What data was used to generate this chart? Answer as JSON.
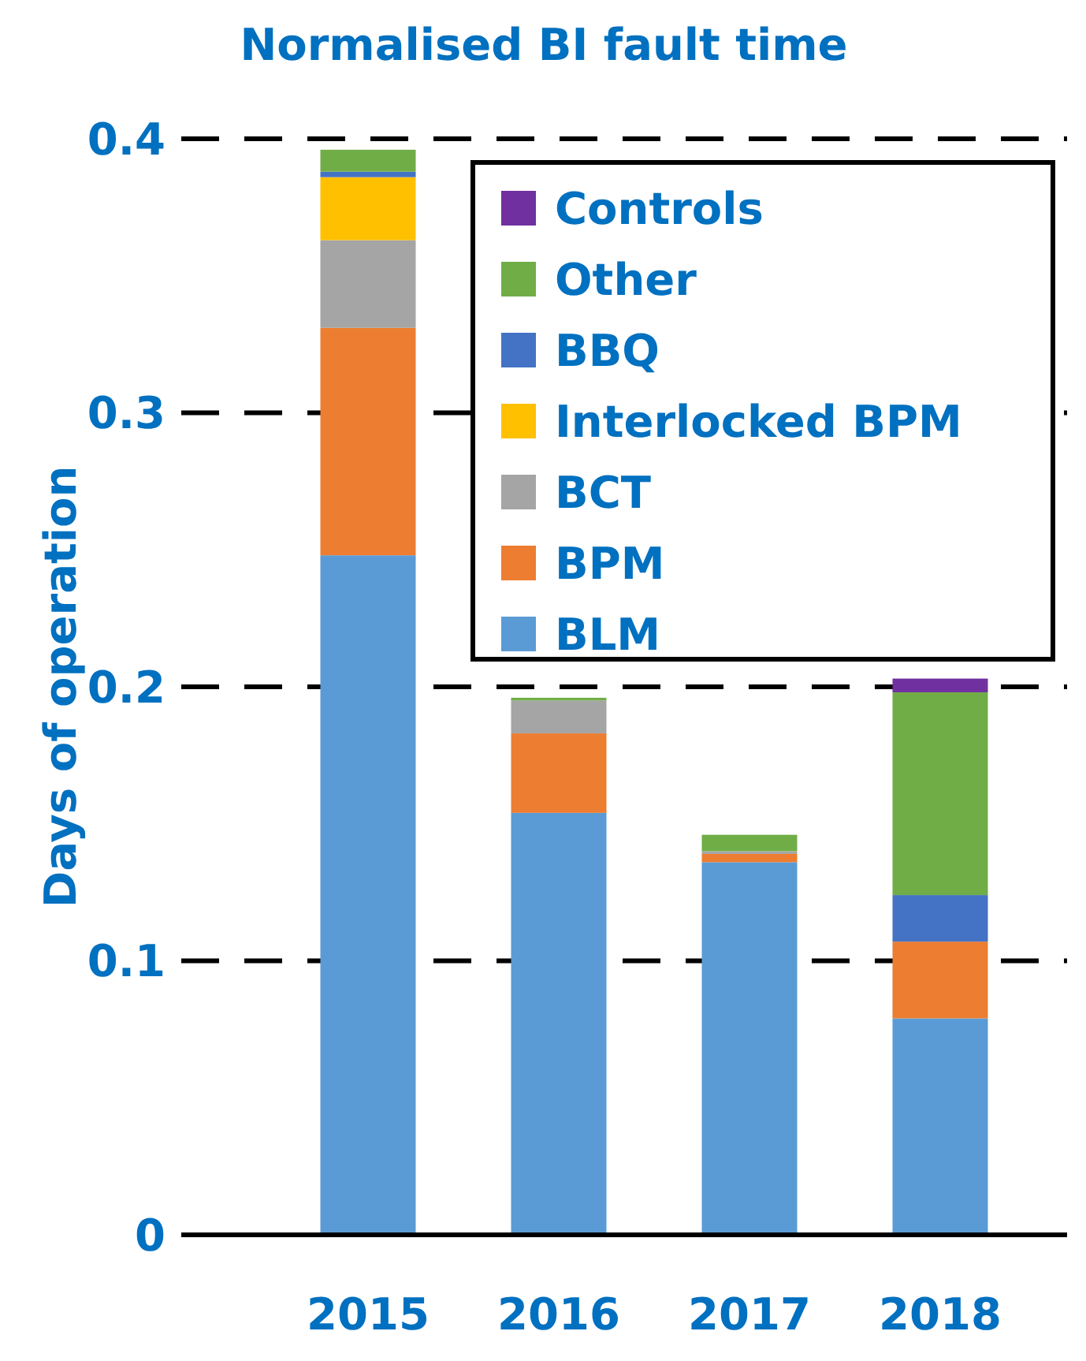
{
  "chart_data": {
    "type": "bar",
    "title": "Normalised BI fault time",
    "ylabel": "Days of operation",
    "categories": [
      "2015",
      "2016",
      "2017",
      "2018"
    ],
    "stacked": true,
    "ylim": [
      0,
      0.4
    ],
    "yticks": [
      0,
      0.1,
      0.2,
      0.3,
      0.4
    ],
    "grid": "y",
    "legend": "top right",
    "series": [
      {
        "name": "BLM",
        "color": "#5b9bd5",
        "values": [
          0.248,
          0.154,
          0.136,
          0.079
        ]
      },
      {
        "name": "BPM",
        "color": "#ed7d31",
        "values": [
          0.083,
          0.029,
          0.003,
          0.028
        ]
      },
      {
        "name": "BCT",
        "color": "#a5a5a5",
        "values": [
          0.032,
          0.012,
          0.001,
          0
        ]
      },
      {
        "name": "Interlocked BPM",
        "color": "#ffc000",
        "values": [
          0.023,
          0,
          0,
          0
        ]
      },
      {
        "name": "BBQ",
        "color": "#4472c4",
        "values": [
          0.002,
          0,
          0,
          0.017
        ]
      },
      {
        "name": "Other",
        "color": "#70ad47",
        "values": [
          0.008,
          0.001,
          0.006,
          0.074
        ]
      },
      {
        "name": "Controls",
        "color": "#7030a0",
        "values": [
          0,
          0,
          0,
          0.005
        ]
      }
    ]
  }
}
